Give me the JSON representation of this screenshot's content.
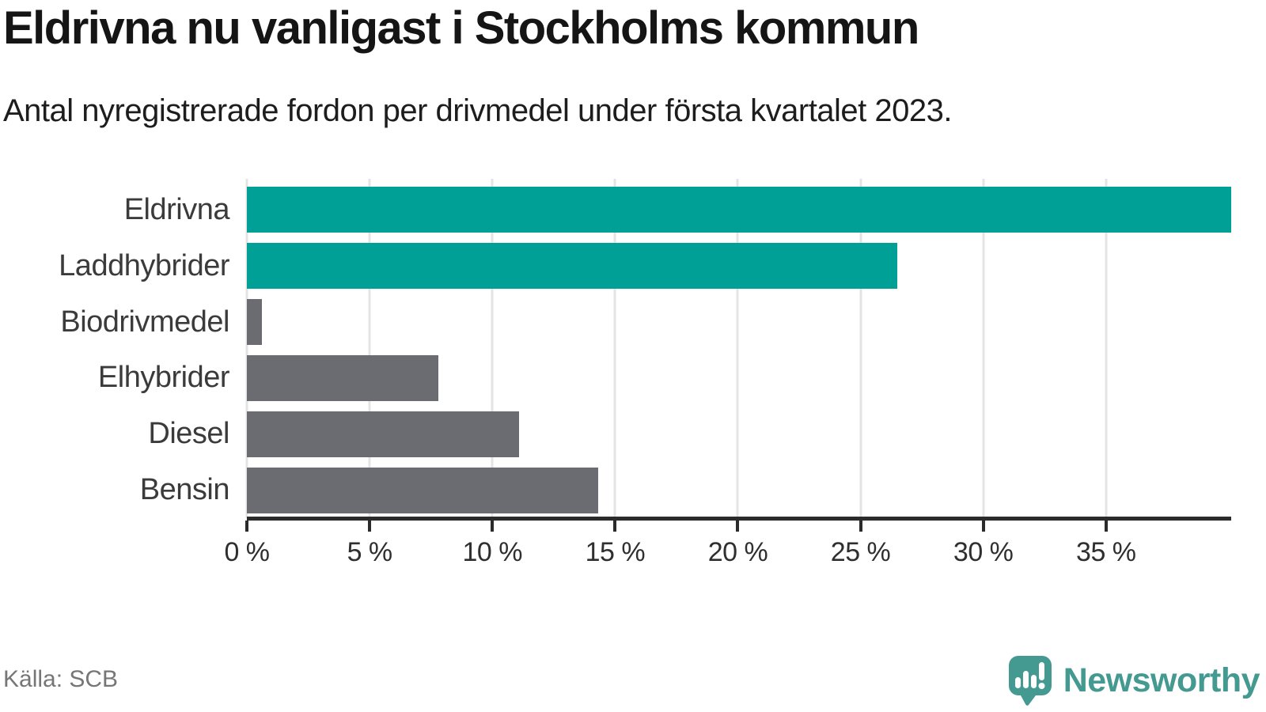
{
  "title": "Eldrivna nu vanligast i Stockholms kommun",
  "subtitle": "Antal nyregistrerade fordon per drivmedel under första kvartalet 2023.",
  "source": "Källa: SCB",
  "brand": {
    "name": "Newsworthy",
    "logo_icon": "speech-bubble-bar-chart-icon",
    "color": "#449991"
  },
  "colors": {
    "highlight_bar": "#00a096",
    "default_bar": "#6b6b72",
    "gridline": "#e4e4e4",
    "axis": "#2b2b2b",
    "title_text": "#151515",
    "category_text": "#3b3b3b",
    "source_text": "#767676"
  },
  "chart_data": {
    "type": "bar",
    "orientation": "horizontal",
    "title": "Eldrivna nu vanligast i Stockholms kommun",
    "subtitle": "Antal nyregistrerade fordon per drivmedel under första kvartalet 2023.",
    "categories": [
      "Eldrivna",
      "Laddhybrider",
      "Biodrivmedel",
      "Elhybrider",
      "Diesel",
      "Bensin"
    ],
    "values": [
      40.1,
      26.5,
      0.6,
      7.8,
      11.1,
      14.3
    ],
    "unit": "%",
    "bar_colors": [
      "#00a096",
      "#00a096",
      "#6b6b72",
      "#6b6b72",
      "#6b6b72",
      "#6b6b72"
    ],
    "xlim": [
      0,
      40.1
    ],
    "x_tick_values": [
      0,
      5,
      10,
      15,
      20,
      25,
      30,
      35
    ],
    "x_ticks": [
      "0 %",
      "5 %",
      "10 %",
      "15 %",
      "20 %",
      "25 %",
      "30 %",
      "35 %"
    ],
    "grid": true,
    "legend": false
  }
}
